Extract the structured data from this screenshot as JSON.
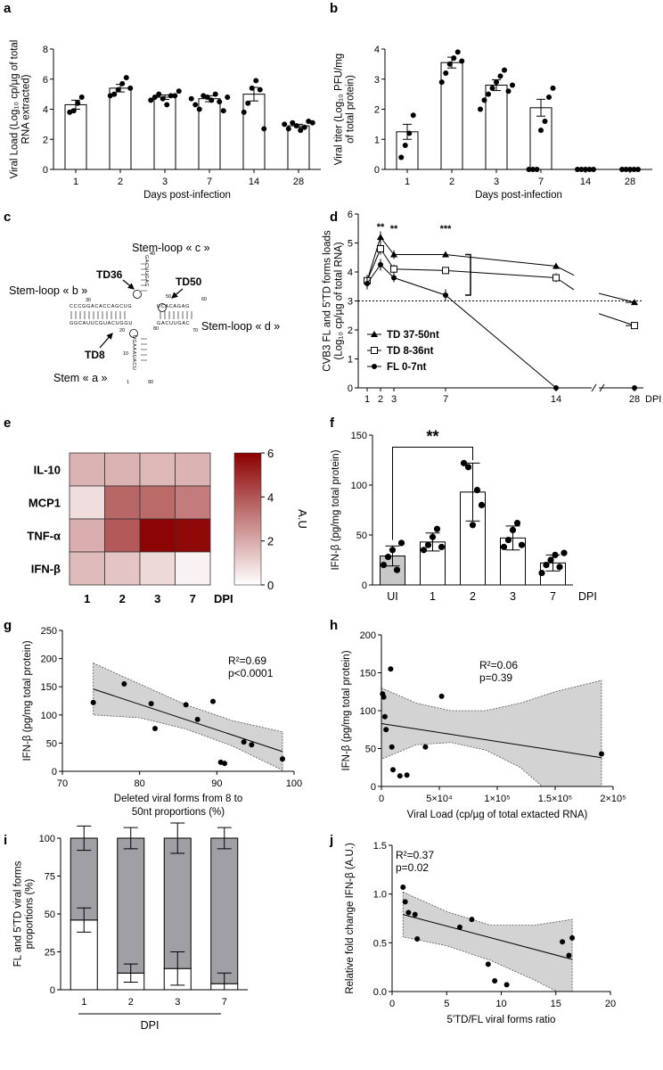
{
  "panel_labels": [
    "a",
    "b",
    "c",
    "d",
    "e",
    "f",
    "g",
    "h",
    "i",
    "j"
  ],
  "chart_data": [
    {
      "panel": "a",
      "type": "bar",
      "ylabel_lines": [
        "Viral Load (Log₁₀ cp/µg of total",
        "RNA extracted)"
      ],
      "xlabel": "Days post-infection",
      "categories": [
        "1",
        "2",
        "3",
        "7",
        "14",
        "28"
      ],
      "values": [
        4.3,
        5.4,
        4.8,
        4.7,
        5.0,
        2.9
      ],
      "sem": [
        0.3,
        0.25,
        0.15,
        0.2,
        0.45,
        0.1
      ],
      "points": [
        [
          3.8,
          3.9,
          4.4,
          4.8
        ],
        [
          4.9,
          5.0,
          5.3,
          5.7,
          6.1,
          5.4
        ],
        [
          4.6,
          4.8,
          5.0,
          4.7,
          4.3,
          4.9,
          4.9,
          5.2
        ],
        [
          4.7,
          4.3,
          4.0,
          4.9,
          4.8,
          4.6,
          5.0,
          4.5,
          3.9,
          4.8
        ],
        [
          3.8,
          4.4,
          5.4,
          5.9,
          5.3,
          2.7
        ],
        [
          3.0,
          2.7,
          3.1,
          2.9,
          2.6,
          2.8,
          3.2,
          3.1
        ]
      ],
      "ylim": [
        0,
        8
      ],
      "yticks": [
        "0",
        "2",
        "4",
        "6",
        "8"
      ]
    },
    {
      "panel": "b",
      "type": "bar",
      "ylabel_lines": [
        "Viral titer (Log₁₀ PFU/mg",
        "of total protein)"
      ],
      "xlabel": "Days post-infection",
      "categories": [
        "1",
        "2",
        "3",
        "7",
        "14",
        "28"
      ],
      "values": [
        1.25,
        3.55,
        2.8,
        2.05,
        0,
        0
      ],
      "sem": [
        0.25,
        0.18,
        0.18,
        0.28,
        0,
        0
      ],
      "points": [
        [
          0.4,
          0.8,
          1.2,
          1.8
        ],
        [
          2.9,
          3.2,
          3.5,
          3.7,
          3.9,
          3.6
        ],
        [
          2.0,
          2.3,
          2.5,
          2.7,
          2.9,
          3.1,
          3.3,
          2.6,
          2.8
        ],
        [
          0,
          0,
          0,
          1.3,
          1.6,
          2.4,
          2.7
        ],
        [
          0,
          0,
          0,
          0,
          0
        ],
        [
          0,
          0,
          0,
          0,
          0
        ]
      ],
      "ylim": [
        0,
        4
      ],
      "yticks": [
        "0",
        "1",
        "2",
        "3",
        "4"
      ]
    },
    {
      "panel": "d",
      "type": "line",
      "ylabel_lines": [
        "CVB3 FL and 5'TD forms loads",
        "(Log₁₀ cp/µg of total RNA)"
      ],
      "xlabel": "DPI",
      "x": [
        1,
        2,
        3,
        7,
        14,
        28
      ],
      "xtick_labels": [
        "1",
        "2",
        "3",
        "7",
        "14",
        "28"
      ],
      "series": [
        {
          "name": "TD 37-50nt",
          "values": [
            3.7,
            5.2,
            4.6,
            4.6,
            4.2,
            2.95
          ],
          "err": [
            0.2,
            0.2,
            0.15,
            0.1,
            0.1,
            0.05
          ]
        },
        {
          "name": "TD 8-36nt",
          "values": [
            3.7,
            4.8,
            4.1,
            4.05,
            3.8,
            2.15
          ],
          "err": [
            0.2,
            0.2,
            0.15,
            0.1,
            0.15,
            0.05
          ]
        },
        {
          "name": "FL 0-7nt",
          "values": [
            3.6,
            4.25,
            3.8,
            3.2,
            0,
            0
          ],
          "err": [
            0.2,
            0.2,
            0.15,
            0.2,
            0,
            0
          ]
        }
      ],
      "threshold": 3,
      "significance": [
        {
          "x": 2,
          "label": "**"
        },
        {
          "x": 3,
          "label": "**"
        },
        {
          "x": 7,
          "label": "***"
        }
      ],
      "ylim": [
        0,
        6
      ],
      "yticks": [
        "0",
        "1",
        "2",
        "3",
        "4",
        "5",
        "6"
      ]
    },
    {
      "panel": "e",
      "type": "heatmap",
      "rows": [
        "IL-10",
        "MCP1",
        "TNF-α",
        "IFN-β"
      ],
      "cols": [
        "1",
        "2",
        "3",
        "7"
      ],
      "col_axis_label": "DPI",
      "values": [
        [
          1.8,
          1.8,
          1.7,
          1.8
        ],
        [
          0.8,
          3.6,
          3.5,
          3.1
        ],
        [
          1.9,
          3.9,
          5.9,
          5.8
        ],
        [
          1.6,
          1.4,
          0.9,
          0.3
        ]
      ],
      "scale": [
        0,
        6
      ],
      "colorbar_label": "A.U",
      "colorbar_ticks": [
        "0",
        "2",
        "4",
        "6"
      ],
      "color_low": "#ffffff",
      "color_high": "#8b0000"
    },
    {
      "panel": "f",
      "type": "bar",
      "ylabel": "IFN-β (pg/mg total protein)",
      "xlabel": "DPI",
      "categories": [
        "UI",
        "1",
        "2",
        "3",
        "7"
      ],
      "values": [
        29,
        43,
        93,
        47,
        22
      ],
      "sd": [
        10,
        9,
        29,
        12,
        8
      ],
      "points": [
        [
          20,
          28,
          35,
          15,
          42
        ],
        [
          35,
          40,
          48,
          56,
          38
        ],
        [
          122,
          118,
          60,
          95,
          80
        ],
        [
          38,
          45,
          55,
          62,
          40
        ],
        [
          12,
          20,
          25,
          30,
          18,
          32
        ]
      ],
      "bar_fill": [
        "#c8c8c8",
        "#ffffff",
        "#ffffff",
        "#ffffff",
        "#ffffff"
      ],
      "significance": {
        "from": "UI",
        "to": "2",
        "label": "**"
      },
      "ylim": [
        0,
        150
      ],
      "yticks": [
        "0",
        "50",
        "100",
        "150"
      ]
    },
    {
      "panel": "g",
      "type": "scatter",
      "ylabel": "IFN-β (pg/mg total protein)",
      "xlabel_lines": [
        "Deleted viral forms from 8 to",
        "50nt proportions (%)"
      ],
      "points": [
        [
          74,
          122
        ],
        [
          78,
          155
        ],
        [
          81.5,
          120
        ],
        [
          82,
          76
        ],
        [
          86,
          118
        ],
        [
          87.5,
          92
        ],
        [
          89.5,
          124
        ],
        [
          90.5,
          16
        ],
        [
          91,
          14
        ],
        [
          93.5,
          52
        ],
        [
          94.5,
          47
        ],
        [
          98.5,
          22
        ]
      ],
      "fit": {
        "x": [
          74,
          98.5
        ],
        "y": [
          146,
          35
        ]
      },
      "band": {
        "x": [
          74,
          80,
          86,
          92,
          98.5
        ],
        "upper": [
          192,
          155,
          118,
          90,
          70
        ],
        "lower": [
          100,
          95,
          75,
          45,
          2
        ]
      },
      "annotation_lines": [
        "R²=0.69",
        "p<0.0001"
      ],
      "xlim": [
        70,
        100
      ],
      "ylim": [
        0,
        250
      ],
      "xticks": [
        "70",
        "80",
        "90",
        "100"
      ],
      "yticks": [
        "0",
        "50",
        "100",
        "150",
        "200",
        "250"
      ]
    },
    {
      "panel": "h",
      "type": "scatter",
      "ylabel": "IFN-β (pg/mg total protein)",
      "xlabel": "Viral Load (cp/µg of total extacted RNA)",
      "points": [
        [
          1000,
          122
        ],
        [
          2000,
          118
        ],
        [
          3000,
          92
        ],
        [
          4000,
          75
        ],
        [
          8000,
          155
        ],
        [
          9000,
          52
        ],
        [
          10000,
          22
        ],
        [
          16000,
          14
        ],
        [
          22000,
          15
        ],
        [
          38000,
          52
        ],
        [
          52000,
          119
        ],
        [
          190000,
          43
        ]
      ],
      "fit": {
        "x": [
          0,
          190000
        ],
        "y": [
          83,
          38
        ]
      },
      "band": {
        "x": [
          0,
          30000,
          60000,
          90000,
          120000,
          150000,
          190000
        ],
        "upper": [
          130,
          110,
          100,
          100,
          110,
          125,
          140
        ],
        "lower": [
          36,
          55,
          58,
          48,
          25,
          -15,
          -60
        ]
      },
      "annotation_lines": [
        "R²=0.06",
        "p=0.39"
      ],
      "xlim": [
        0,
        200000
      ],
      "ylim": [
        0,
        200
      ],
      "xticks": [
        "0",
        "5×10⁴",
        "1×10⁵",
        "1.5×10⁵",
        "2×10⁵"
      ],
      "yticks": [
        "0",
        "50",
        "100",
        "150",
        "200"
      ]
    },
    {
      "panel": "i",
      "type": "bar",
      "stacked": true,
      "ylabel_lines": [
        "FL and 5'TD viral forms",
        "proportions (%)"
      ],
      "xlabel": "DPI",
      "categories": [
        "1",
        "2",
        "3",
        "7"
      ],
      "series": [
        {
          "name": "FL",
          "values": [
            46,
            11,
            14,
            4
          ],
          "err": [
            8,
            6,
            11,
            7
          ],
          "color": "#ffffff"
        },
        {
          "name": "5'TD",
          "values": [
            54,
            89,
            86,
            96
          ],
          "err": [
            8,
            7,
            10,
            7
          ],
          "color": "#a0a0a4"
        }
      ],
      "ylim": [
        0,
        100
      ],
      "yticks": [
        "0",
        "25",
        "50",
        "75",
        "100"
      ]
    },
    {
      "panel": "j",
      "type": "scatter",
      "ylabel": "Relative fold change IFN-β (A.U.)",
      "xlabel": "5'TD/FL viral forms ratio",
      "points": [
        [
          1.0,
          1.07
        ],
        [
          1.2,
          0.92
        ],
        [
          1.5,
          0.81
        ],
        [
          2.1,
          0.79
        ],
        [
          2.3,
          0.54
        ],
        [
          6.2,
          0.66
        ],
        [
          7.3,
          0.74
        ],
        [
          8.8,
          0.28
        ],
        [
          9.4,
          0.11
        ],
        [
          10.5,
          0.07
        ],
        [
          15.6,
          0.51
        ],
        [
          16.2,
          0.37
        ],
        [
          16.5,
          0.55
        ]
      ],
      "fit": {
        "x": [
          1,
          16.5
        ],
        "y": [
          0.79,
          0.33
        ]
      },
      "band": {
        "x": [
          1,
          5,
          9,
          13,
          16.5
        ],
        "upper": [
          1.02,
          0.82,
          0.68,
          0.68,
          0.74
        ],
        "lower": [
          0.56,
          0.47,
          0.32,
          0.12,
          -0.08
        ]
      },
      "annotation_lines": [
        "R²=0.37",
        "p=0.02"
      ],
      "xlim": [
        0,
        20
      ],
      "ylim": [
        0,
        1.5
      ],
      "xticks": [
        "0",
        "5",
        "10",
        "15",
        "20"
      ],
      "yticks": [
        "0.0",
        "0.5",
        "1.0",
        "1.5"
      ]
    }
  ],
  "diagram_c": {
    "labels": {
      "stem_loop_c": "Stem-loop « c »",
      "stem_loop_b": "Stem-loop « b »",
      "stem_loop_d": "Stem-loop « d »",
      "stem_a": "Stem « a »",
      "td36": "TD36",
      "td50": "TD50",
      "td8": "TD8"
    },
    "seq_left": "CCCGGACACCAGCUG",
    "seq_right": "GGCAUUCGUACUGGU",
    "seq_stem_down": "UGAAAUACU",
    "seq_loop_top": "GACUUGAC",
    "seq_loop_right": "UCACAGAG",
    "nt_numbers": [
      "1",
      "8",
      "10",
      "20",
      "30",
      "36",
      "40",
      "50",
      "60",
      "70",
      "80",
      "90"
    ]
  }
}
